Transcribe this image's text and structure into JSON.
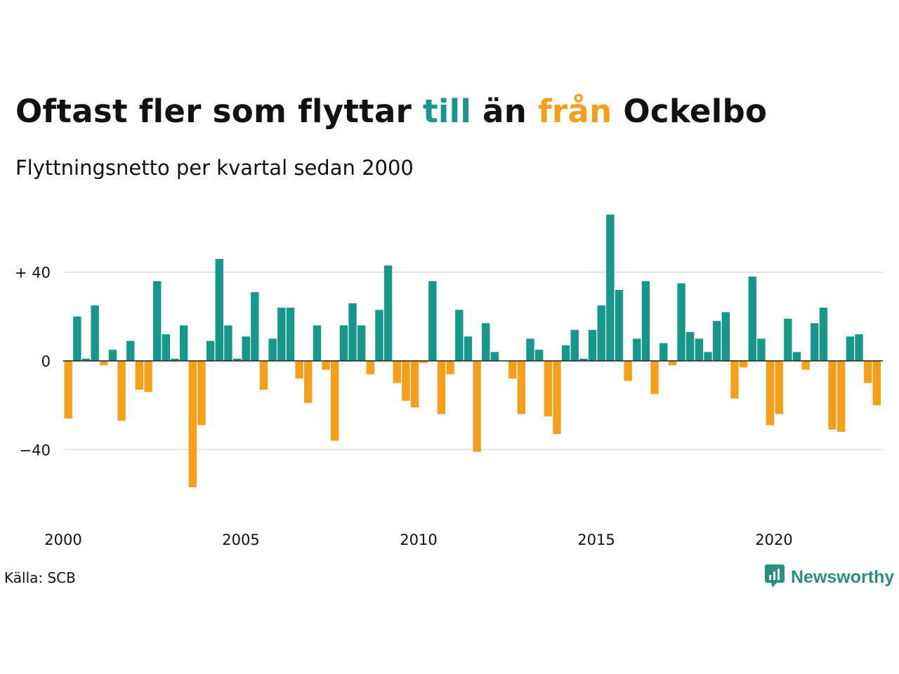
{
  "title": {
    "prefix": "Oftast fler som flyttar ",
    "till": "till",
    "middle": " än ",
    "fran": "från",
    "suffix": " Ockelbo"
  },
  "subtitle": "Flyttningsnetto per kvartal sedan 2000",
  "source": "Källa: SCB",
  "brand": {
    "name": "Newsworthy",
    "icon": "newsworthy-logo-icon"
  },
  "colors": {
    "positive": "#17968a",
    "negative": "#f59f1b",
    "till": "#17968a",
    "fran": "#f59f1b"
  },
  "chart_data": {
    "type": "bar",
    "start_year": 2000,
    "start_quarter": 1,
    "values": [
      -26,
      20,
      1,
      25,
      -2,
      5,
      -27,
      9,
      -13,
      -14,
      36,
      12,
      1,
      16,
      -57,
      -29,
      9,
      46,
      16,
      1,
      11,
      31,
      -13,
      10,
      24,
      24,
      -8,
      -19,
      16,
      -4,
      -36,
      16,
      26,
      16,
      -6,
      23,
      43,
      -10,
      -18,
      -21,
      -1,
      36,
      -24,
      -6,
      23,
      11,
      -41,
      17,
      4,
      0,
      -8,
      -24,
      10,
      5,
      -25,
      -33,
      7,
      14,
      1,
      14,
      25,
      66,
      32,
      -9,
      10,
      36,
      -15,
      8,
      -2,
      35,
      13,
      10,
      4,
      18,
      22,
      -17,
      -3,
      38,
      10,
      -29,
      -24,
      19,
      4,
      -4,
      17,
      24,
      -31,
      -32,
      11,
      12,
      -10,
      -20
    ],
    "y_ticks": [
      {
        "value": 40,
        "label": "+ 40"
      },
      {
        "value": 0,
        "label": "0"
      },
      {
        "value": -40,
        "label": "−40"
      }
    ],
    "x_ticks": [
      "2000",
      "2005",
      "2010",
      "2015",
      "2020"
    ],
    "ylim": [
      -70,
      70
    ],
    "grid": true,
    "legend": "none"
  }
}
